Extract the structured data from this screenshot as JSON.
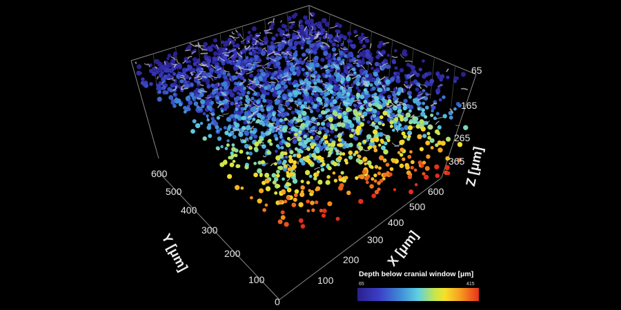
{
  "figure": {
    "y_axis": {
      "title": "Y [μm]",
      "ticks": [
        "600",
        "500",
        "400",
        "300",
        "200",
        "100",
        "0"
      ]
    },
    "x_axis": {
      "title": "X [μm]",
      "ticks": [
        "600",
        "500",
        "400",
        "300",
        "200",
        "100"
      ]
    },
    "z_axis": {
      "title": "Z [μm]",
      "ticks": [
        "65",
        "165",
        "265",
        "365"
      ]
    },
    "colorbar": {
      "title": "Depth below cranial window [μm]",
      "min_label": "65",
      "max_label": "415"
    },
    "colors": {
      "background": "#000000",
      "vessel": "#c8c8d0",
      "shallow": "#33309e",
      "deep": "#e02a1a"
    }
  }
}
